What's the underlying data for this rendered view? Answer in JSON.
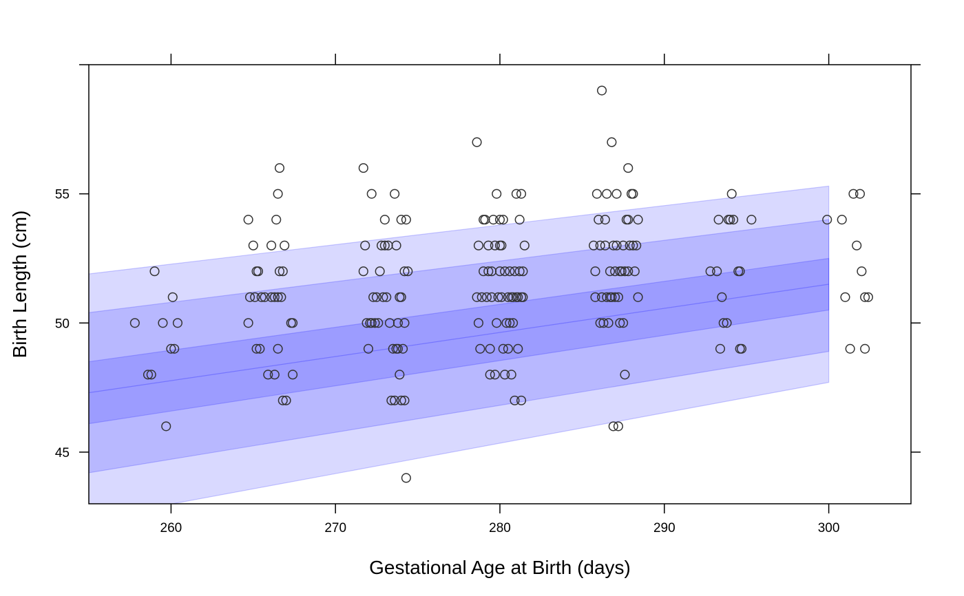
{
  "chart_data": {
    "type": "scatter",
    "xlabel": "Gestational Age at Birth (days)",
    "ylabel": "Birth Length (cm)",
    "xlim": [
      255,
      305
    ],
    "ylim": [
      43,
      60
    ],
    "x_ticks": [
      260,
      270,
      280,
      290,
      300
    ],
    "y_ticks": [
      45,
      50,
      55
    ],
    "grid": false,
    "band_x_range": [
      255,
      300
    ],
    "band_fill_color": "#0000ff",
    "point_color": "#333333",
    "centile_bands": [
      {
        "lower_start": 42.4,
        "lower_end": 47.7,
        "upper_start": 51.9,
        "upper_end": 55.3
      },
      {
        "lower_start": 44.2,
        "lower_end": 48.9,
        "upper_start": 50.4,
        "upper_end": 54.0
      },
      {
        "lower_start": 46.1,
        "lower_end": 50.5,
        "upper_start": 48.5,
        "upper_end": 52.5
      }
    ],
    "median_line": {
      "start": 47.3,
      "end": 51.5
    },
    "points": [
      [
        257.8,
        50
      ],
      [
        258.6,
        48
      ],
      [
        258.8,
        48
      ],
      [
        259.0,
        52
      ],
      [
        259.5,
        50
      ],
      [
        259.7,
        46
      ],
      [
        260.0,
        49
      ],
      [
        260.2,
        49
      ],
      [
        260.1,
        51
      ],
      [
        260.4,
        50
      ],
      [
        264.7,
        54
      ],
      [
        264.7,
        50
      ],
      [
        264.8,
        51
      ],
      [
        265.0,
        53
      ],
      [
        265.1,
        51
      ],
      [
        265.2,
        52
      ],
      [
        265.3,
        52
      ],
      [
        265.2,
        49
      ],
      [
        265.4,
        49
      ],
      [
        265.5,
        51
      ],
      [
        265.7,
        51
      ],
      [
        265.9,
        48
      ],
      [
        266.1,
        51
      ],
      [
        266.1,
        53
      ],
      [
        266.3,
        48
      ],
      [
        266.3,
        51
      ],
      [
        266.4,
        54
      ],
      [
        266.5,
        51
      ],
      [
        266.5,
        55
      ],
      [
        266.5,
        49
      ],
      [
        266.6,
        52
      ],
      [
        266.6,
        56
      ],
      [
        266.7,
        51
      ],
      [
        266.8,
        47
      ],
      [
        266.8,
        52
      ],
      [
        266.9,
        53
      ],
      [
        267.0,
        47
      ],
      [
        267.3,
        50
      ],
      [
        267.4,
        48
      ],
      [
        267.4,
        50
      ],
      [
        271.7,
        56
      ],
      [
        271.7,
        52
      ],
      [
        271.8,
        53
      ],
      [
        271.9,
        50
      ],
      [
        272.0,
        49
      ],
      [
        272.1,
        50
      ],
      [
        272.2,
        55
      ],
      [
        272.2,
        50
      ],
      [
        272.3,
        51
      ],
      [
        272.4,
        50
      ],
      [
        272.5,
        51
      ],
      [
        272.6,
        50
      ],
      [
        272.7,
        52
      ],
      [
        272.8,
        53
      ],
      [
        272.9,
        51
      ],
      [
        273.0,
        53
      ],
      [
        273.0,
        54
      ],
      [
        273.1,
        51
      ],
      [
        273.2,
        53
      ],
      [
        273.3,
        50
      ],
      [
        273.4,
        47
      ],
      [
        273.5,
        49
      ],
      [
        273.6,
        47
      ],
      [
        273.6,
        55
      ],
      [
        273.7,
        49
      ],
      [
        273.7,
        53
      ],
      [
        273.8,
        50
      ],
      [
        273.8,
        49
      ],
      [
        273.9,
        48
      ],
      [
        273.9,
        51
      ],
      [
        274.0,
        51
      ],
      [
        274.0,
        47
      ],
      [
        274.0,
        54
      ],
      [
        274.1,
        49
      ],
      [
        274.2,
        50
      ],
      [
        274.2,
        47
      ],
      [
        274.2,
        52
      ],
      [
        274.3,
        44
      ],
      [
        274.3,
        54
      ],
      [
        274.4,
        52
      ],
      [
        278.6,
        57
      ],
      [
        278.6,
        51
      ],
      [
        278.7,
        50
      ],
      [
        278.7,
        53
      ],
      [
        278.8,
        49
      ],
      [
        278.9,
        51
      ],
      [
        279.0,
        52
      ],
      [
        279.0,
        54
      ],
      [
        279.1,
        54
      ],
      [
        279.2,
        51
      ],
      [
        279.3,
        53
      ],
      [
        279.3,
        52
      ],
      [
        279.4,
        49
      ],
      [
        279.4,
        48
      ],
      [
        279.5,
        51
      ],
      [
        279.5,
        52
      ],
      [
        279.6,
        54
      ],
      [
        279.7,
        48
      ],
      [
        279.7,
        53
      ],
      [
        279.8,
        50
      ],
      [
        279.8,
        55
      ],
      [
        279.9,
        51
      ],
      [
        280.0,
        52
      ],
      [
        280.0,
        54
      ],
      [
        280.0,
        53
      ],
      [
        280.1,
        53
      ],
      [
        280.1,
        51
      ],
      [
        280.2,
        49
      ],
      [
        280.2,
        54
      ],
      [
        280.3,
        48
      ],
      [
        280.3,
        52
      ],
      [
        280.4,
        50
      ],
      [
        280.5,
        51
      ],
      [
        280.5,
        49
      ],
      [
        280.6,
        52
      ],
      [
        280.6,
        50
      ],
      [
        280.7,
        51
      ],
      [
        280.7,
        48
      ],
      [
        280.8,
        51
      ],
      [
        280.8,
        50
      ],
      [
        280.9,
        52
      ],
      [
        280.9,
        47
      ],
      [
        281.0,
        55
      ],
      [
        281.0,
        51
      ],
      [
        281.1,
        49
      ],
      [
        281.1,
        51
      ],
      [
        281.2,
        52
      ],
      [
        281.2,
        54
      ],
      [
        281.3,
        55
      ],
      [
        281.3,
        47
      ],
      [
        281.3,
        51
      ],
      [
        281.4,
        52
      ],
      [
        281.4,
        51
      ],
      [
        281.5,
        53
      ],
      [
        285.7,
        53
      ],
      [
        285.8,
        52
      ],
      [
        285.8,
        51
      ],
      [
        285.9,
        55
      ],
      [
        286.0,
        54
      ],
      [
        286.1,
        50
      ],
      [
        286.1,
        53
      ],
      [
        286.2,
        59
      ],
      [
        286.2,
        51
      ],
      [
        286.3,
        50
      ],
      [
        286.4,
        53
      ],
      [
        286.4,
        54
      ],
      [
        286.5,
        51
      ],
      [
        286.5,
        55
      ],
      [
        286.6,
        50
      ],
      [
        286.7,
        51
      ],
      [
        286.7,
        52
      ],
      [
        286.8,
        57
      ],
      [
        286.8,
        51
      ],
      [
        286.9,
        53
      ],
      [
        286.9,
        46
      ],
      [
        287.0,
        51
      ],
      [
        287.0,
        52
      ],
      [
        287.1,
        53
      ],
      [
        287.1,
        55
      ],
      [
        287.2,
        51
      ],
      [
        287.2,
        46
      ],
      [
        287.3,
        52
      ],
      [
        287.3,
        50
      ],
      [
        287.4,
        52
      ],
      [
        287.5,
        53
      ],
      [
        287.5,
        50
      ],
      [
        287.6,
        52
      ],
      [
        287.6,
        48
      ],
      [
        287.7,
        54
      ],
      [
        287.8,
        56
      ],
      [
        287.8,
        54
      ],
      [
        287.8,
        52
      ],
      [
        287.9,
        53
      ],
      [
        288.0,
        55
      ],
      [
        288.1,
        55
      ],
      [
        288.1,
        53
      ],
      [
        288.2,
        52
      ],
      [
        288.3,
        53
      ],
      [
        288.4,
        51
      ],
      [
        288.4,
        54
      ],
      [
        292.8,
        52
      ],
      [
        293.2,
        52
      ],
      [
        293.3,
        54
      ],
      [
        293.4,
        49
      ],
      [
        293.5,
        51
      ],
      [
        293.6,
        50
      ],
      [
        293.8,
        50
      ],
      [
        293.9,
        54
      ],
      [
        294.0,
        54
      ],
      [
        294.1,
        55
      ],
      [
        294.2,
        54
      ],
      [
        294.5,
        52
      ],
      [
        294.6,
        49
      ],
      [
        294.6,
        52
      ],
      [
        294.7,
        49
      ],
      [
        295.3,
        54
      ],
      [
        299.9,
        54
      ],
      [
        300.8,
        54
      ],
      [
        301.0,
        51
      ],
      [
        301.3,
        49
      ],
      [
        301.5,
        55
      ],
      [
        301.7,
        53
      ],
      [
        301.9,
        55
      ],
      [
        302.0,
        52
      ],
      [
        302.2,
        49
      ],
      [
        302.2,
        51
      ],
      [
        302.4,
        51
      ]
    ]
  }
}
